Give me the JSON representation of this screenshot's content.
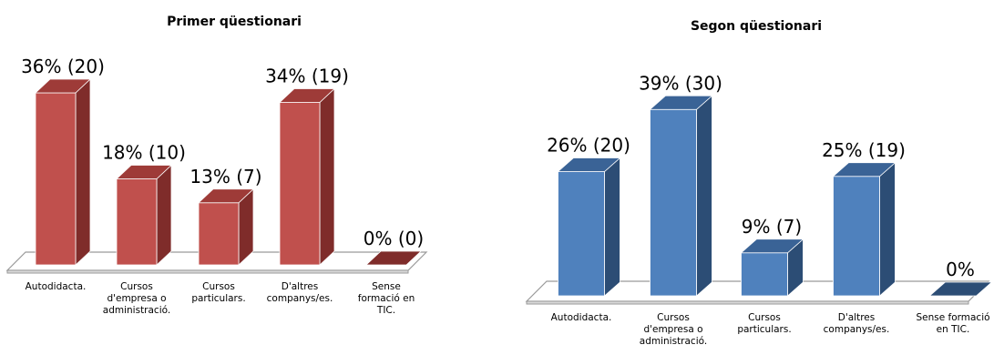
{
  "chart_data": [
    {
      "type": "bar",
      "title": "Primer qüestionari",
      "categories": [
        [
          "Autodidacta."
        ],
        [
          "Cursos",
          "d'empresa o",
          "administració."
        ],
        [
          "Cursos",
          "particulars."
        ],
        [
          "D'altres",
          "companys/es."
        ],
        [
          "Sense",
          "formació en",
          "TIC."
        ]
      ],
      "values": [
        36,
        18,
        13,
        34,
        0
      ],
      "data_labels": [
        "36% (20)",
        "18% (10)",
        "13% (7)",
        "34% (19)",
        "0% (0)"
      ],
      "colors": {
        "front": "#C0504D",
        "side": "#7F2C2A",
        "top": "#9E3B38",
        "floor": "#ffffff"
      }
    },
    {
      "type": "bar",
      "title": "Segon qüestionari",
      "categories": [
        [
          "Autodidacta."
        ],
        [
          "Cursos",
          "d'empresa o",
          "administració."
        ],
        [
          "Cursos",
          "particulars."
        ],
        [
          "D'altres",
          "companys/es."
        ],
        [
          "Sense formació",
          "en TIC."
        ]
      ],
      "values": [
        26,
        39,
        9,
        25,
        0
      ],
      "data_labels": [
        "26% (20)",
        "39% (30)",
        "9% (7)",
        "25% (19)",
        "0%"
      ],
      "colors": {
        "front": "#4F81BD",
        "side": "#2C4D75",
        "top": "#3A6396",
        "floor": "#ffffff"
      }
    }
  ]
}
